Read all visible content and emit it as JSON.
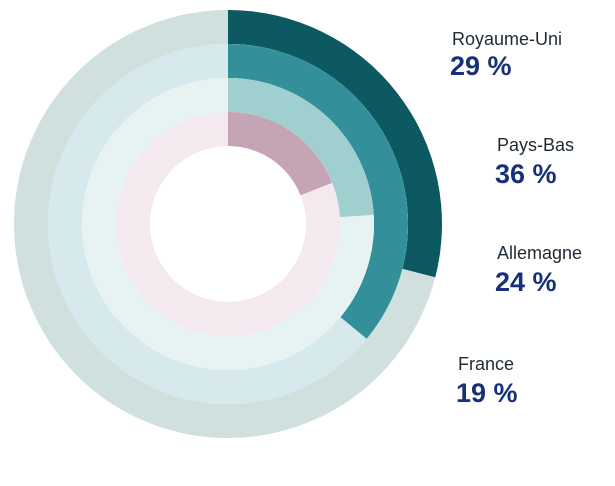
{
  "chart_data": {
    "type": "radial-progress",
    "series": [
      {
        "name": "Royaume-Uni",
        "values": [
          29
        ],
        "value_labels": [
          "29 %"
        ],
        "color": "#0d5962",
        "track_color": "#cfe0df"
      },
      {
        "name": "Pays-Bas",
        "values": [
          36
        ],
        "value_labels": [
          "36 %"
        ],
        "color": "#33909b",
        "track_color": "#d6e9ec"
      },
      {
        "name": "Allemagne",
        "values": [
          24
        ],
        "value_labels": [
          "24 %"
        ],
        "color": "#9fd0cf",
        "track_color": "#e7f3f3"
      },
      {
        "name": "France",
        "values": [
          19
        ],
        "value_labels": [
          "19 %"
        ],
        "color": "#c5a4b5",
        "track_color": "#f3e9ee"
      }
    ],
    "ylim": [
      0,
      100
    ]
  }
}
